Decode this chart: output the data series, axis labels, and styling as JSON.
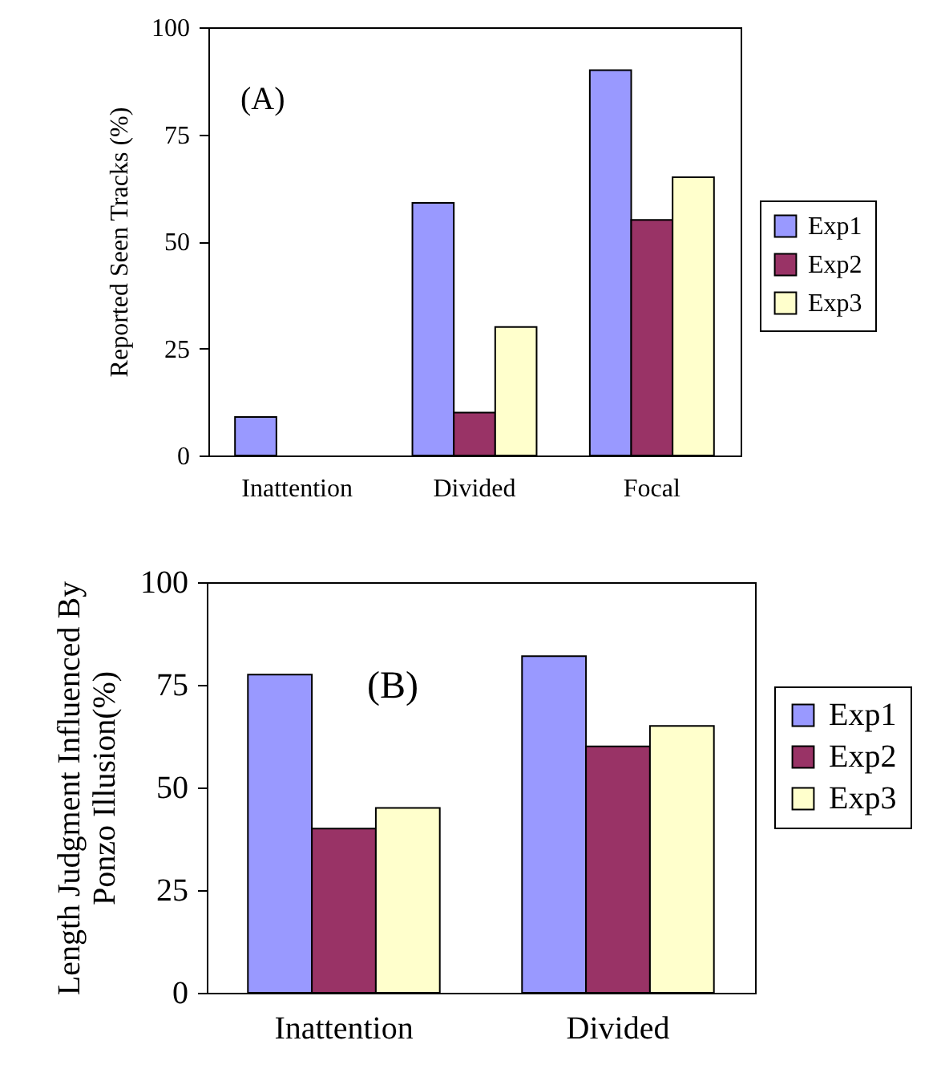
{
  "chart_data": [
    {
      "type": "bar",
      "title": "(A)",
      "ylabel": "Reported Seen Tracks (%)",
      "categories": [
        "Inattention",
        "Divided",
        "Focal"
      ],
      "ylim": [
        0,
        100
      ],
      "yticks": [
        0,
        25,
        50,
        75,
        100
      ],
      "grid": false,
      "legend": "right",
      "series": [
        {
          "name": "Exp1",
          "color": "#9999ff",
          "values": [
            9,
            59,
            90
          ]
        },
        {
          "name": "Exp2",
          "color": "#993366",
          "values": [
            0,
            10,
            55
          ]
        },
        {
          "name": "Exp3",
          "color": "#ffffcc",
          "values": [
            0,
            30,
            65
          ]
        }
      ]
    },
    {
      "type": "bar",
      "title": "(B)",
      "ylabel": "Length Judgment Influenced By\nPonzo Illusion(%)",
      "categories": [
        "Inattention",
        "Divided"
      ],
      "ylim": [
        0,
        100
      ],
      "yticks": [
        0,
        25,
        50,
        75,
        100
      ],
      "grid": false,
      "legend": "right",
      "series": [
        {
          "name": "Exp1",
          "color": "#9999ff",
          "values": [
            77.5,
            82
          ]
        },
        {
          "name": "Exp2",
          "color": "#993366",
          "values": [
            40,
            60
          ]
        },
        {
          "name": "Exp3",
          "color": "#ffffcc",
          "values": [
            45,
            65
          ]
        }
      ]
    }
  ]
}
